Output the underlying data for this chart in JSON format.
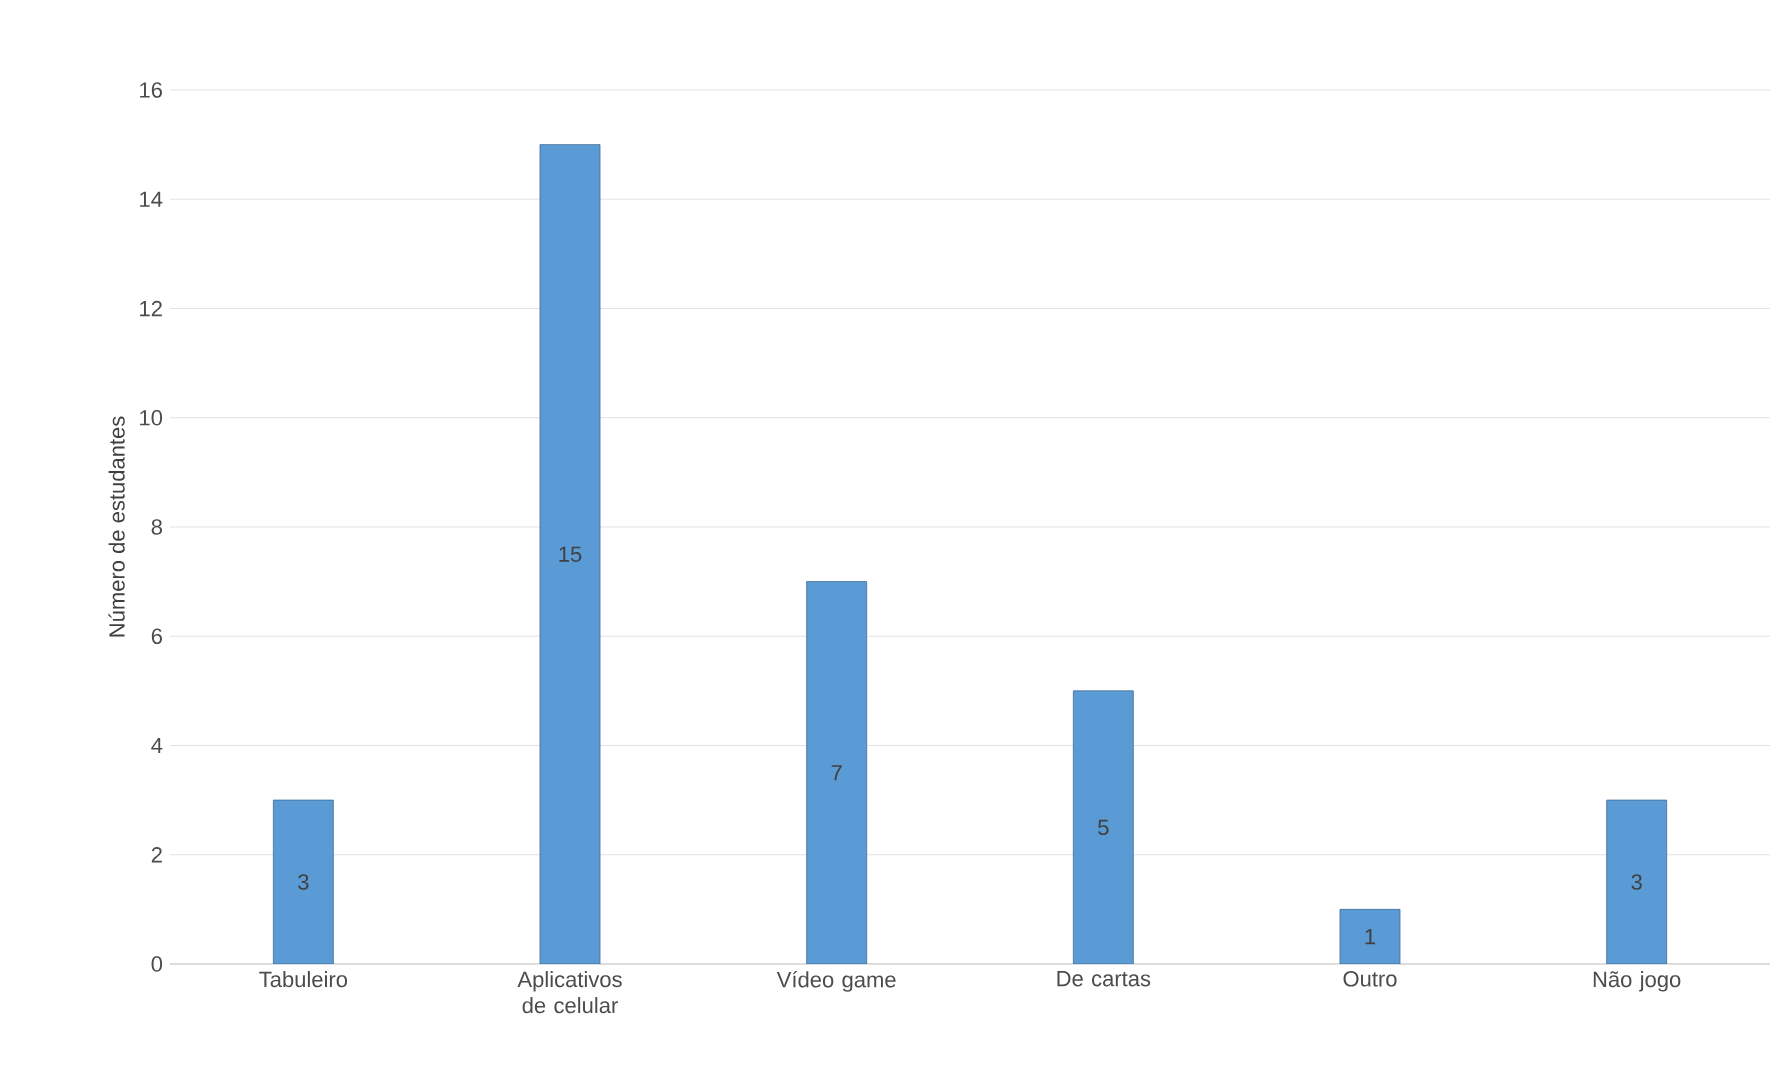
{
  "chart_data": {
    "type": "bar",
    "ylabel": "Número de estudantes",
    "categories": [
      "Tabuleiro",
      "Aplicativos de celular",
      "Vídeo game",
      "De cartas",
      "Outro",
      "Não jogo"
    ],
    "values": [
      3,
      15,
      7,
      5,
      1,
      3
    ],
    "color": "#5b9bd5",
    "ylim": [
      0,
      16
    ],
    "yticks": [
      0,
      2,
      4,
      6,
      8,
      10,
      12,
      14,
      16
    ],
    "grid": "y",
    "data_labels": true
  }
}
